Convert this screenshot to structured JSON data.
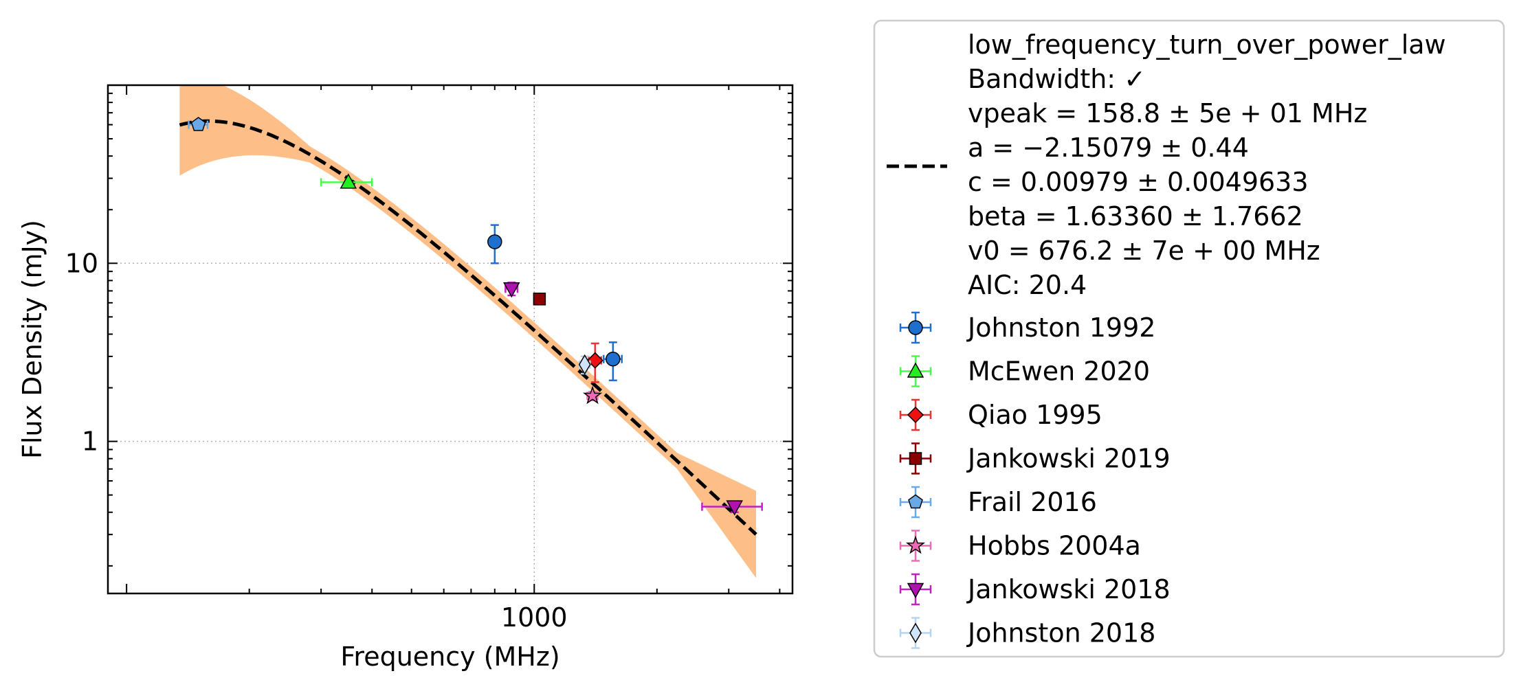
{
  "chart_data": {
    "type": "scatter",
    "xlabel": "Frequency (MHz)",
    "ylabel": "Flux Density (mJy)",
    "x_scale": "log",
    "y_scale": "log",
    "xlim": [
      90,
      4300
    ],
    "ylim": [
      0.14,
      100
    ],
    "x_ticks": [
      {
        "value": 1000,
        "label": "1000"
      }
    ],
    "y_ticks": [
      {
        "value": 1,
        "label": "1"
      },
      {
        "value": 10,
        "label": "10"
      }
    ],
    "grid": true,
    "legend_position": "outside-right",
    "fit": {
      "name": "low_frequency_turn_over_power_law",
      "color": "#000000",
      "band_color": "#fdbf87",
      "vpeak": 158.8,
      "a": -2.15079,
      "c": 0.00979,
      "beta": 1.6336,
      "v0": 676.2,
      "x_range": [
        135,
        3500
      ],
      "legend_lines": [
        "low_frequency_turn_over_power_law",
        "Bandwidth: ✓",
        "vpeak = 158.8 ± 5e + 01 MHz",
        "a = −2.15079 ± 0.44",
        "c = 0.00979 ± 0.0049633",
        "beta = 1.63360 ± 1.7662",
        "v0 = 676.2 ± 7e + 00 MHz",
        "AIC: 20.4"
      ]
    },
    "series": [
      {
        "name": "Johnston 1992",
        "marker": "circle",
        "color": "#1f6fcf",
        "ecolor": "#1f6fcf",
        "points": [
          {
            "x": 800,
            "y": 13.2,
            "xerr": [
              0,
              0
            ],
            "yerr": [
              3.2,
              3.2
            ]
          },
          {
            "x": 1560,
            "y": 2.9,
            "xerr": [
              80,
              80
            ],
            "yerr": [
              0.7,
              0.7
            ]
          }
        ]
      },
      {
        "name": "McEwen 2020",
        "marker": "triangle-up",
        "color": "#22ee22",
        "ecolor": "#44ff44",
        "points": [
          {
            "x": 350,
            "y": 28.5,
            "xerr": [
              50,
              50
            ],
            "yerr": [
              1.2,
              1.2
            ]
          }
        ]
      },
      {
        "name": "Qiao 1995",
        "marker": "diamond",
        "color": "#ee1111",
        "ecolor": "#ee3333",
        "points": [
          {
            "x": 1410,
            "y": 2.85,
            "xerr": [
              50,
              50
            ],
            "yerr": [
              0.7,
              0.7
            ]
          }
        ]
      },
      {
        "name": "Jankowski 2019",
        "marker": "square",
        "color": "#8b0000",
        "ecolor": "#8b0000",
        "points": [
          {
            "x": 1030,
            "y": 6.3,
            "xerr": [
              0,
              0
            ],
            "yerr": [
              0.3,
              0.3
            ]
          }
        ]
      },
      {
        "name": "Frail 2016",
        "marker": "pentagon",
        "color": "#6aa9e8",
        "ecolor": "#6aa9e8",
        "points": [
          {
            "x": 150,
            "y": 60,
            "xerr": [
              8,
              8
            ],
            "yerr": [
              2,
              2
            ]
          }
        ]
      },
      {
        "name": "Hobbs 2004a",
        "marker": "star",
        "color": "#f069b4",
        "ecolor": "#f069b4",
        "points": [
          {
            "x": 1390,
            "y": 1.8,
            "xerr": [
              40,
              40
            ],
            "yerr": [
              0.1,
              0.1
            ]
          }
        ]
      },
      {
        "name": "Jankowski 2018",
        "marker": "triangle-down",
        "color": "#b012b0",
        "ecolor": "#c020c0",
        "points": [
          {
            "x": 880,
            "y": 7.2,
            "xerr": [
              30,
              30
            ],
            "yerr": [
              0.6,
              0.6
            ]
          },
          {
            "x": 3100,
            "y": 0.43,
            "xerr": [
              520,
              520
            ],
            "yerr": [
              0.03,
              0.03
            ]
          }
        ]
      },
      {
        "name": "Johnston 2018",
        "marker": "thin-diamond",
        "color": "#cfe4f8",
        "ecolor": "#b5d4f0",
        "points": [
          {
            "x": 1330,
            "y": 2.7,
            "xerr": [
              40,
              40
            ],
            "yerr": [
              0.3,
              0.3
            ]
          }
        ]
      }
    ]
  }
}
